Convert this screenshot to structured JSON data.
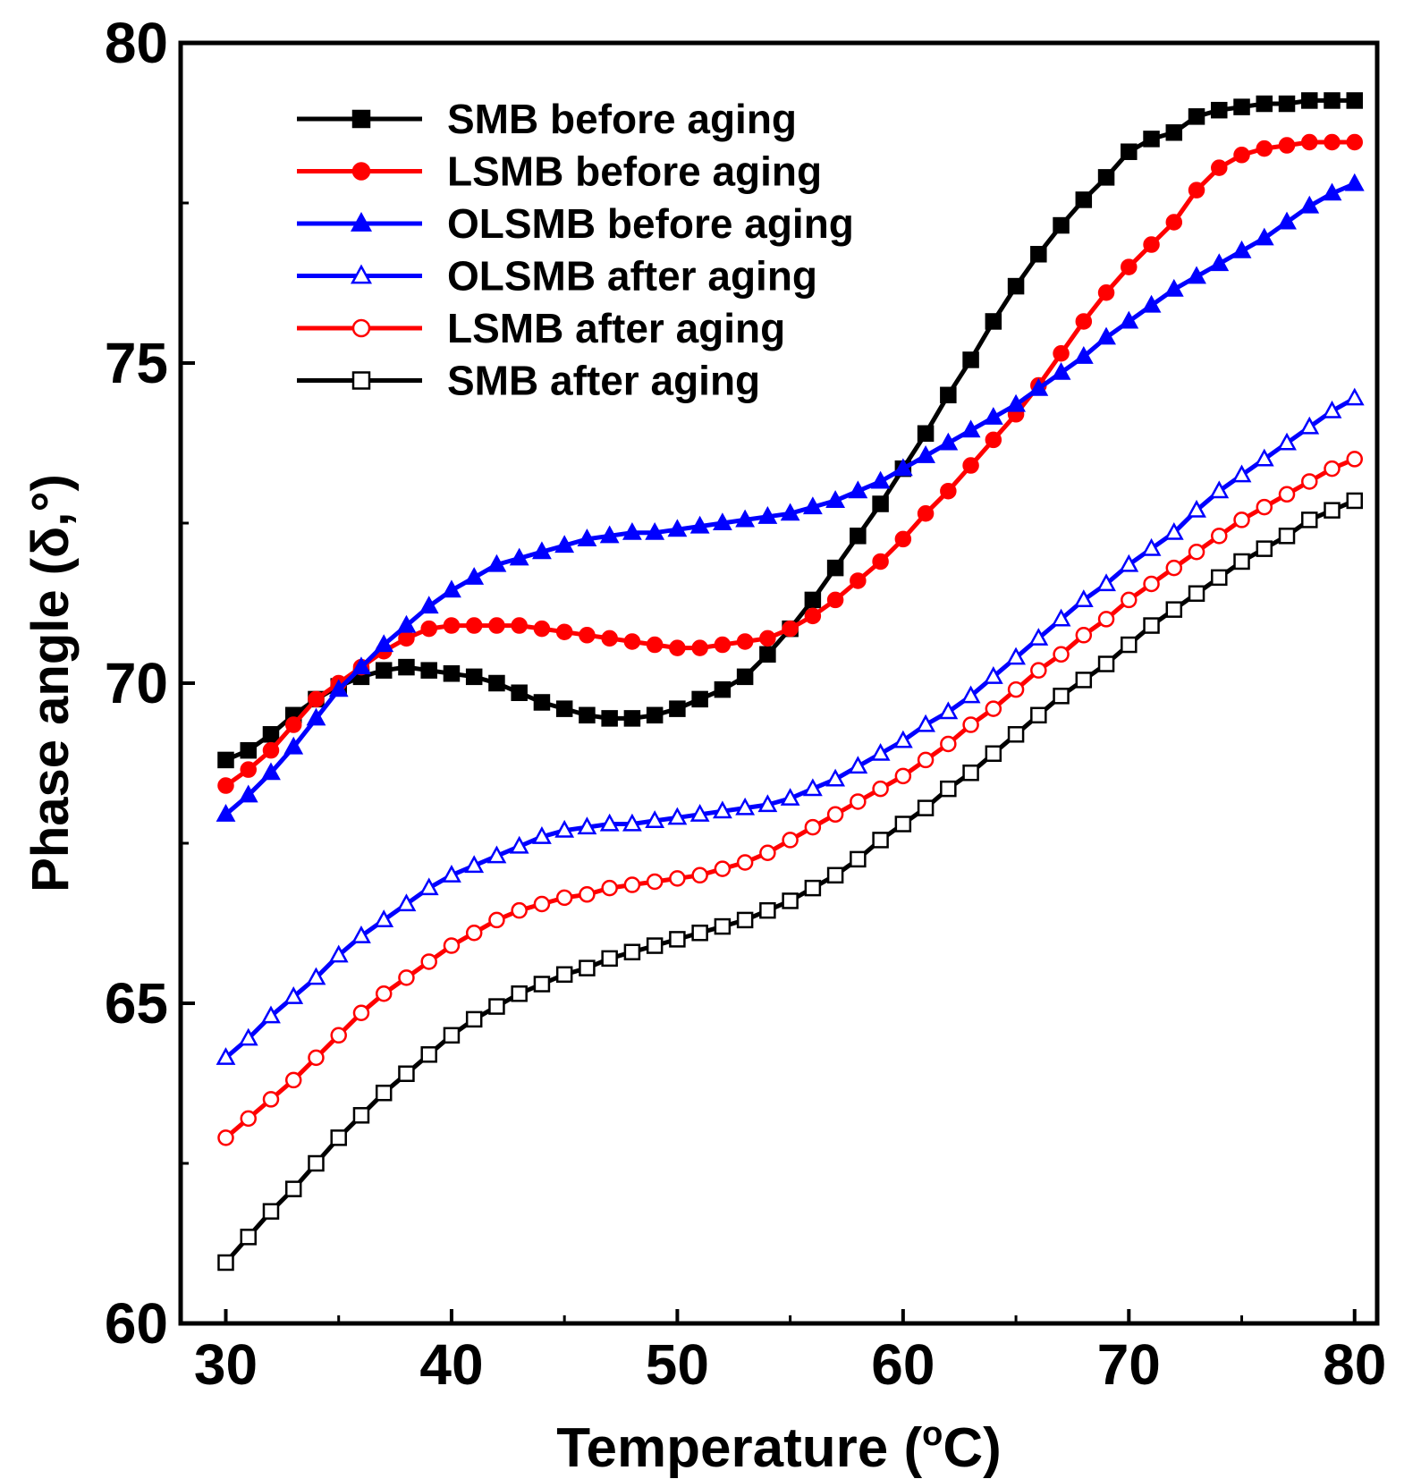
{
  "chart_data": {
    "type": "line",
    "xlabel_main": "Temperature (",
    "xlabel_sup": "o",
    "xlabel_end": "C)",
    "ylabel": "Phase angle (δ,°)",
    "xlim": [
      28,
      81
    ],
    "ylim": [
      60,
      80
    ],
    "xticks": [
      30,
      40,
      50,
      60,
      70,
      80
    ],
    "yticks": [
      60,
      65,
      70,
      75,
      80
    ],
    "legend_position": "upper-left",
    "series": [
      {
        "name": "SMB before aging",
        "color": "#000000",
        "marker": "square",
        "filled": true,
        "x": [
          30,
          31,
          32,
          33,
          34,
          35,
          36,
          37,
          38,
          39,
          40,
          41,
          42,
          43,
          44,
          45,
          46,
          47,
          48,
          49,
          50,
          51,
          52,
          53,
          54,
          55,
          56,
          57,
          58,
          59,
          60,
          61,
          62,
          63,
          64,
          65,
          66,
          67,
          68,
          69,
          70,
          71,
          72,
          73,
          74,
          75,
          76,
          77,
          78,
          79,
          80
        ],
        "y": [
          68.8,
          68.95,
          69.2,
          69.5,
          69.75,
          69.95,
          70.1,
          70.2,
          70.25,
          70.2,
          70.15,
          70.1,
          70.0,
          69.85,
          69.7,
          69.6,
          69.5,
          69.45,
          69.45,
          69.5,
          69.6,
          69.75,
          69.9,
          70.1,
          70.45,
          70.85,
          71.3,
          71.8,
          72.3,
          72.8,
          73.35,
          73.9,
          74.5,
          75.05,
          75.65,
          76.2,
          76.7,
          77.15,
          77.55,
          77.9,
          78.3,
          78.5,
          78.6,
          78.85,
          78.95,
          79.0,
          79.05,
          79.05,
          79.1,
          79.1,
          79.1
        ]
      },
      {
        "name": "LSMB before aging",
        "color": "#ff0000",
        "marker": "circle",
        "filled": true,
        "x": [
          30,
          31,
          32,
          33,
          34,
          35,
          36,
          37,
          38,
          39,
          40,
          41,
          42,
          43,
          44,
          45,
          46,
          47,
          48,
          49,
          50,
          51,
          52,
          53,
          54,
          55,
          56,
          57,
          58,
          59,
          60,
          61,
          62,
          63,
          64,
          65,
          66,
          67,
          68,
          69,
          70,
          71,
          72,
          73,
          74,
          75,
          76,
          77,
          78,
          79,
          80
        ],
        "y": [
          68.4,
          68.65,
          68.95,
          69.35,
          69.75,
          70.0,
          70.25,
          70.5,
          70.7,
          70.85,
          70.9,
          70.9,
          70.9,
          70.9,
          70.85,
          70.8,
          70.75,
          70.7,
          70.65,
          70.6,
          70.55,
          70.55,
          70.6,
          70.65,
          70.7,
          70.85,
          71.05,
          71.3,
          71.6,
          71.9,
          72.25,
          72.65,
          73.0,
          73.4,
          73.8,
          74.2,
          74.65,
          75.15,
          75.65,
          76.1,
          76.5,
          76.85,
          77.2,
          77.7,
          78.05,
          78.25,
          78.35,
          78.4,
          78.45,
          78.45,
          78.45
        ]
      },
      {
        "name": "OLSMB before aging",
        "color": "#0000ff",
        "marker": "triangle",
        "filled": true,
        "x": [
          30,
          31,
          32,
          33,
          34,
          35,
          36,
          37,
          38,
          39,
          40,
          41,
          42,
          43,
          44,
          45,
          46,
          47,
          48,
          49,
          50,
          51,
          52,
          53,
          54,
          55,
          56,
          57,
          58,
          59,
          60,
          61,
          62,
          63,
          64,
          65,
          66,
          67,
          68,
          69,
          70,
          71,
          72,
          73,
          74,
          75,
          76,
          77,
          78,
          79,
          80
        ],
        "y": [
          67.95,
          68.25,
          68.6,
          69.0,
          69.45,
          69.9,
          70.25,
          70.6,
          70.9,
          71.2,
          71.45,
          71.65,
          71.85,
          71.95,
          72.05,
          72.15,
          72.25,
          72.3,
          72.35,
          72.35,
          72.4,
          72.45,
          72.5,
          72.55,
          72.6,
          72.65,
          72.75,
          72.85,
          73.0,
          73.15,
          73.35,
          73.55,
          73.75,
          73.95,
          74.15,
          74.35,
          74.6,
          74.85,
          75.1,
          75.4,
          75.65,
          75.9,
          76.15,
          76.35,
          76.55,
          76.75,
          76.95,
          77.2,
          77.45,
          77.65,
          77.8
        ]
      },
      {
        "name": "OLSMB after aging",
        "color": "#0000ff",
        "marker": "triangle",
        "filled": false,
        "x": [
          30,
          31,
          32,
          33,
          34,
          35,
          36,
          37,
          38,
          39,
          40,
          41,
          42,
          43,
          44,
          45,
          46,
          47,
          48,
          49,
          50,
          51,
          52,
          53,
          54,
          55,
          56,
          57,
          58,
          59,
          60,
          61,
          62,
          63,
          64,
          65,
          66,
          67,
          68,
          69,
          70,
          71,
          72,
          73,
          74,
          75,
          76,
          77,
          78,
          79,
          80
        ],
        "y": [
          64.15,
          64.45,
          64.8,
          65.1,
          65.4,
          65.75,
          66.05,
          66.3,
          66.55,
          66.8,
          67.0,
          67.15,
          67.3,
          67.45,
          67.6,
          67.7,
          67.75,
          67.8,
          67.8,
          67.85,
          67.9,
          67.95,
          68.0,
          68.05,
          68.1,
          68.2,
          68.35,
          68.5,
          68.7,
          68.9,
          69.1,
          69.35,
          69.55,
          69.8,
          70.1,
          70.4,
          70.7,
          71.0,
          71.3,
          71.55,
          71.85,
          72.1,
          72.35,
          72.7,
          73.0,
          73.25,
          73.5,
          73.75,
          74.0,
          74.25,
          74.45
        ]
      },
      {
        "name": "LSMB after aging",
        "color": "#ff0000",
        "marker": "circle",
        "filled": false,
        "x": [
          30,
          31,
          32,
          33,
          34,
          35,
          36,
          37,
          38,
          39,
          40,
          41,
          42,
          43,
          44,
          45,
          46,
          47,
          48,
          49,
          50,
          51,
          52,
          53,
          54,
          55,
          56,
          57,
          58,
          59,
          60,
          61,
          62,
          63,
          64,
          65,
          66,
          67,
          68,
          69,
          70,
          71,
          72,
          73,
          74,
          75,
          76,
          77,
          78,
          79,
          80
        ],
        "y": [
          62.9,
          63.2,
          63.5,
          63.8,
          64.15,
          64.5,
          64.85,
          65.15,
          65.4,
          65.65,
          65.9,
          66.1,
          66.3,
          66.45,
          66.55,
          66.65,
          66.7,
          66.8,
          66.85,
          66.9,
          66.95,
          67.0,
          67.1,
          67.2,
          67.35,
          67.55,
          67.75,
          67.95,
          68.15,
          68.35,
          68.55,
          68.8,
          69.05,
          69.35,
          69.6,
          69.9,
          70.2,
          70.45,
          70.75,
          71.0,
          71.3,
          71.55,
          71.8,
          72.05,
          72.3,
          72.55,
          72.75,
          72.95,
          73.15,
          73.35,
          73.5
        ]
      },
      {
        "name": "SMB after aging",
        "color": "#000000",
        "marker": "square",
        "filled": false,
        "x": [
          30,
          31,
          32,
          33,
          34,
          35,
          36,
          37,
          38,
          39,
          40,
          41,
          42,
          43,
          44,
          45,
          46,
          47,
          48,
          49,
          50,
          51,
          52,
          53,
          54,
          55,
          56,
          57,
          58,
          59,
          60,
          61,
          62,
          63,
          64,
          65,
          66,
          67,
          68,
          69,
          70,
          71,
          72,
          73,
          74,
          75,
          76,
          77,
          78,
          79,
          80
        ],
        "y": [
          60.95,
          61.35,
          61.75,
          62.1,
          62.5,
          62.9,
          63.25,
          63.6,
          63.9,
          64.2,
          64.5,
          64.75,
          64.95,
          65.15,
          65.3,
          65.45,
          65.55,
          65.7,
          65.8,
          65.9,
          66.0,
          66.1,
          66.2,
          66.3,
          66.45,
          66.6,
          66.8,
          67.0,
          67.25,
          67.55,
          67.8,
          68.05,
          68.35,
          68.6,
          68.9,
          69.2,
          69.5,
          69.8,
          70.05,
          70.3,
          70.6,
          70.9,
          71.15,
          71.4,
          71.65,
          71.9,
          72.1,
          72.3,
          72.55,
          72.7,
          72.85
        ]
      }
    ]
  }
}
